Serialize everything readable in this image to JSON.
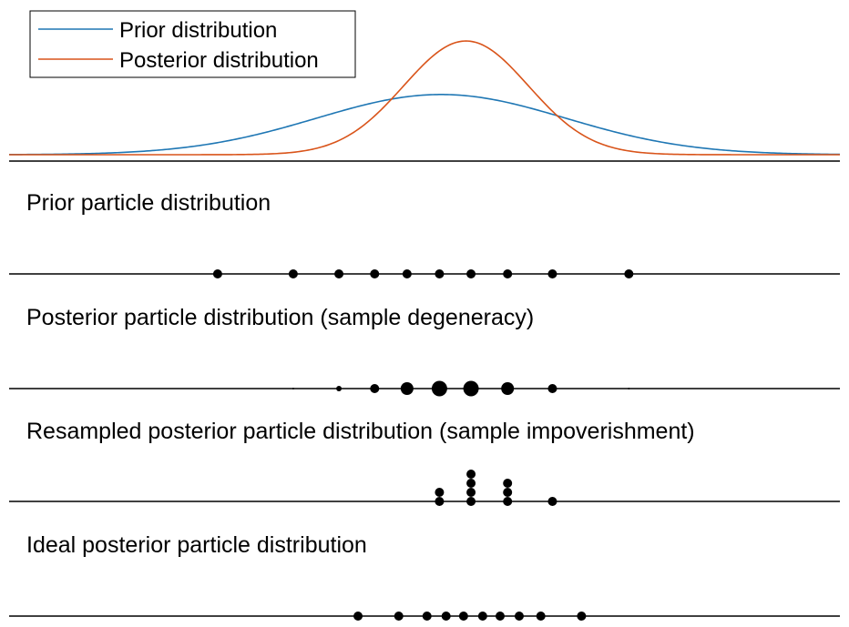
{
  "legend": {
    "prior_label": "Prior distribution",
    "posterior_label": "Posterior distribution"
  },
  "colors": {
    "prior": "#1f77b4",
    "posterior": "#d9541a",
    "particle": "#000000",
    "axis": "#000000"
  },
  "distributions": {
    "prior": {
      "mean": 0.52,
      "sd": 0.15,
      "peak": 0.45
    },
    "posterior": {
      "mean": 0.55,
      "sd": 0.075,
      "peak": 0.85
    }
  },
  "sections": [
    {
      "label": "Prior particle distribution"
    },
    {
      "label": "Posterior particle distribution (sample degeneracy)"
    },
    {
      "label": "Resampled posterior particle distribution (sample impoverishment)"
    },
    {
      "label": "Ideal posterior particle distribution"
    }
  ],
  "particles": {
    "prior": [
      {
        "x": 0.251,
        "w": 1
      },
      {
        "x": 0.342,
        "w": 1
      },
      {
        "x": 0.397,
        "w": 1
      },
      {
        "x": 0.44,
        "w": 1
      },
      {
        "x": 0.479,
        "w": 1
      },
      {
        "x": 0.518,
        "w": 1
      },
      {
        "x": 0.556,
        "w": 1
      },
      {
        "x": 0.6,
        "w": 1
      },
      {
        "x": 0.654,
        "w": 1
      },
      {
        "x": 0.746,
        "w": 1
      }
    ],
    "posterior": [
      {
        "x": 0.342,
        "w": 0.2
      },
      {
        "x": 0.397,
        "w": 0.6
      },
      {
        "x": 0.44,
        "w": 1
      },
      {
        "x": 0.479,
        "w": 1.4
      },
      {
        "x": 0.518,
        "w": 1.7
      },
      {
        "x": 0.556,
        "w": 1.7
      },
      {
        "x": 0.6,
        "w": 1.4
      },
      {
        "x": 0.654,
        "w": 1
      },
      {
        "x": 0.746,
        "w": 0.15
      }
    ],
    "resampled": [
      {
        "x": 0.518,
        "count": 2
      },
      {
        "x": 0.556,
        "count": 4
      },
      {
        "x": 0.6,
        "count": 3
      },
      {
        "x": 0.654,
        "count": 1
      }
    ],
    "ideal": [
      0.42,
      0.469,
      0.503,
      0.526,
      0.547,
      0.57,
      0.591,
      0.614,
      0.64,
      0.689
    ]
  }
}
